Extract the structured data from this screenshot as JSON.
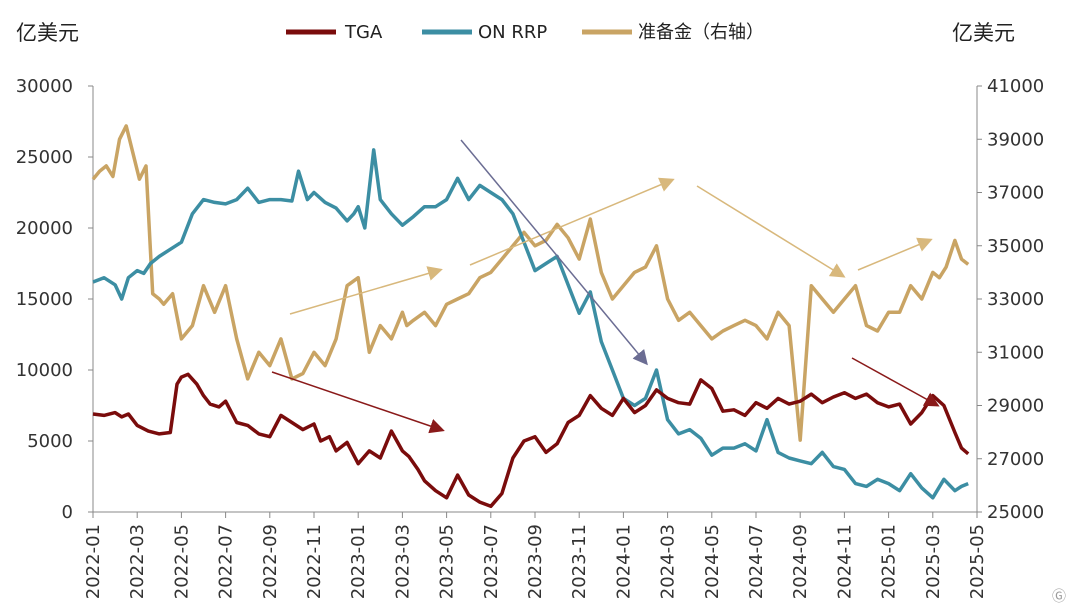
{
  "chart_data": {
    "type": "line",
    "title": "",
    "left_unit": "亿美元",
    "right_unit": "亿美元",
    "legend_position": "top",
    "grid": false,
    "colors": {
      "TGA": "#7a0c0c",
      "ON RRP": "#3c8ea3",
      "准备金（右轴）": "#c9a464"
    },
    "x_ticks": [
      "2022-01",
      "2022-03",
      "2022-05",
      "2022-07",
      "2022-09",
      "2022-11",
      "2023-01",
      "2023-03",
      "2023-05",
      "2023-07",
      "2023-09",
      "2023-11",
      "2024-01",
      "2024-03",
      "2024-05",
      "2024-07",
      "2024-09",
      "2024-11",
      "2025-01",
      "2025-03",
      "2025-05"
    ],
    "x_range": [
      0,
      40
    ],
    "y_left_range": [
      0,
      30000
    ],
    "y_left_ticks": [
      "0",
      "5000",
      "10000",
      "15000",
      "20000",
      "25000",
      "30000"
    ],
    "y_right_range": [
      25000,
      41000
    ],
    "y_right_ticks": [
      "25000",
      "27000",
      "29000",
      "31000",
      "33000",
      "35000",
      "37000",
      "39000",
      "41000"
    ],
    "series": [
      {
        "name": "TGA",
        "axis": "left",
        "x": [
          0,
          0.5,
          1,
          1.3,
          1.6,
          2,
          2.5,
          3,
          3.5,
          3.8,
          4,
          4.3,
          4.7,
          5,
          5.3,
          5.7,
          6,
          6.5,
          7,
          7.5,
          8,
          8.5,
          9,
          9.5,
          10,
          10.3,
          10.7,
          11,
          11.5,
          12,
          12.5,
          13,
          13.5,
          14,
          14.3,
          14.7,
          15,
          15.5,
          16,
          16.5,
          17,
          17.5,
          18,
          18.5,
          19,
          19.5,
          20,
          20.5,
          21,
          21.5,
          22,
          22.5,
          23,
          23.5,
          24,
          24.5,
          25,
          25.5,
          26,
          26.5,
          27,
          27.5,
          28,
          28.5,
          29,
          29.5,
          30,
          30.5,
          31,
          31.5,
          32,
          32.5,
          33,
          33.5,
          34,
          34.5,
          35,
          35.5,
          36,
          36.5,
          37,
          37.5,
          38,
          38.5,
          39,
          39.3,
          39.6
        ],
        "values": [
          6900,
          6800,
          7000,
          6700,
          6900,
          6100,
          5700,
          5500,
          5600,
          9000,
          9500,
          9700,
          9000,
          8200,
          7600,
          7400,
          7800,
          6300,
          6100,
          5500,
          5300,
          6800,
          6300,
          5800,
          6200,
          5000,
          5300,
          4300,
          4900,
          3400,
          4300,
          3800,
          5700,
          4300,
          3900,
          3000,
          2200,
          1500,
          1000,
          2600,
          1200,
          700,
          400,
          1300,
          3800,
          5000,
          5300,
          4200,
          4800,
          6300,
          6800,
          8200,
          7300,
          6800,
          8000,
          7000,
          7500,
          8600,
          8000,
          7700,
          7600,
          9300,
          8700,
          7100,
          7200,
          6800,
          7700,
          7300,
          8000,
          7600,
          7800,
          8300,
          7700,
          8100,
          8400,
          8000,
          8300,
          7700,
          7400,
          7600,
          6200,
          7000,
          8200,
          7500,
          5600,
          4500,
          4100
        ]
      },
      {
        "name": "ON RRP",
        "axis": "left",
        "x": [
          0,
          0.5,
          1,
          1.3,
          1.6,
          2,
          2.3,
          2.6,
          3,
          3.5,
          4,
          4.5,
          5,
          5.5,
          6,
          6.5,
          7,
          7.5,
          8,
          8.5,
          9,
          9.3,
          9.7,
          10,
          10.5,
          11,
          11.5,
          11.8,
          12,
          12.3,
          12.7,
          13,
          13.5,
          14,
          14.5,
          15,
          15.5,
          16,
          16.5,
          17,
          17.5,
          18,
          18.5,
          19,
          19.5,
          20,
          20.5,
          21,
          21.5,
          22,
          22.5,
          23,
          23.5,
          24,
          24.5,
          25,
          25.5,
          26,
          26.5,
          27,
          27.5,
          28,
          28.5,
          29,
          29.5,
          30,
          30.5,
          31,
          31.5,
          32,
          32.5,
          33,
          33.5,
          34,
          34.5,
          35,
          35.5,
          36,
          36.5,
          37,
          37.5,
          38,
          38.5,
          39,
          39.3,
          39.6
        ],
        "values": [
          16200,
          16500,
          16000,
          15000,
          16500,
          17000,
          16800,
          17500,
          18000,
          18500,
          19000,
          21000,
          22000,
          21800,
          21700,
          22000,
          22800,
          21800,
          22000,
          22000,
          21900,
          24000,
          22000,
          22500,
          21800,
          21400,
          20500,
          21000,
          21500,
          20000,
          25500,
          22000,
          21000,
          20200,
          20800,
          21500,
          21500,
          22000,
          23500,
          22000,
          23000,
          22500,
          22000,
          21000,
          19000,
          17000,
          17500,
          18000,
          16000,
          14000,
          15500,
          12000,
          10000,
          8000,
          7500,
          8000,
          10000,
          6500,
          5500,
          5800,
          5200,
          4000,
          4500,
          4500,
          4800,
          4300,
          6500,
          4200,
          3800,
          3600,
          3400,
          4200,
          3200,
          3000,
          2000,
          1800,
          2300,
          2000,
          1500,
          2700,
          1700,
          1000,
          2300,
          1500,
          1800,
          2000
        ]
      },
      {
        "name": "准备金（右轴）",
        "axis": "right",
        "x": [
          0,
          0.3,
          0.6,
          0.9,
          1.2,
          1.5,
          1.8,
          2.1,
          2.4,
          2.7,
          3,
          3.2,
          3.4,
          3.6,
          4,
          4.5,
          5,
          5.5,
          6,
          6.5,
          7,
          7.5,
          8,
          8.5,
          9,
          9.5,
          10,
          10.5,
          11,
          11.5,
          12,
          12.5,
          13,
          13.5,
          14,
          14.2,
          14.5,
          15,
          15.5,
          16,
          16.5,
          17,
          17.5,
          18,
          18.5,
          19,
          19.5,
          20,
          20.5,
          21,
          21.5,
          22,
          22.5,
          23,
          23.5,
          24,
          24.5,
          25,
          25.5,
          26,
          26.5,
          27,
          27.5,
          28,
          28.5,
          29,
          29.5,
          30,
          30.5,
          31,
          31.5,
          32,
          32.5,
          33,
          33.5,
          34,
          34.5,
          35,
          35.5,
          36,
          36.5,
          37,
          37.5,
          38,
          38.3,
          38.6,
          39,
          39.3,
          39.6
        ],
        "values": [
          37500,
          37800,
          38000,
          37600,
          39000,
          39500,
          38500,
          37500,
          38000,
          33200,
          33000,
          32800,
          33000,
          33200,
          31500,
          32000,
          33500,
          32500,
          33500,
          31500,
          30000,
          31000,
          30500,
          31500,
          30000,
          30200,
          31000,
          30500,
          31500,
          33500,
          33800,
          31000,
          32000,
          31500,
          32500,
          32000,
          32200,
          32500,
          32000,
          32800,
          33000,
          33200,
          33800,
          34000,
          34500,
          35000,
          35500,
          35000,
          35200,
          35800,
          35300,
          34500,
          36000,
          34000,
          33000,
          33500,
          34000,
          34200,
          35000,
          33000,
          32200,
          32500,
          32000,
          31500,
          31800,
          32000,
          32200,
          32000,
          31500,
          32500,
          32000,
          27700,
          33500,
          33000,
          32500,
          33000,
          33500,
          32000,
          31800,
          32500,
          32500,
          33500,
          33000,
          34000,
          33800,
          34200,
          35200,
          34500,
          34300
        ]
      }
    ]
  }
}
